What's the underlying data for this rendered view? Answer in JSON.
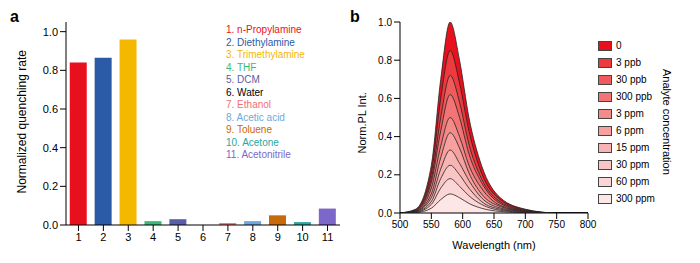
{
  "chart_data": [
    {
      "type": "bar",
      "title": "a",
      "y_label": "Normalized quenching rate",
      "categories": [
        "1",
        "2",
        "3",
        "4",
        "5",
        "6",
        "7",
        "8",
        "9",
        "10",
        "11"
      ],
      "values": [
        0.84,
        0.865,
        0.96,
        0.02,
        0.03,
        0.0,
        0.01,
        0.02,
        0.05,
        0.015,
        0.085
      ],
      "colors": [
        "#e8101c",
        "#2b5ba6",
        "#f5b800",
        "#3cb878",
        "#5a5ea8",
        "#000000",
        "#f07070",
        "#6fa8dc",
        "#c8690a",
        "#2aa5a0",
        "#7b68c8"
      ],
      "annotations": [
        "1. n-Propylamine",
        "2. Diethylamine",
        "3. Trimethylamine",
        "4. THF",
        "5. DCM",
        "6. Water",
        "7. Ethanol",
        "8. Acetic acid",
        "9. Toluene",
        "10. Acetone",
        "11. Acetonitrile"
      ],
      "ylim": [
        0,
        1.05
      ],
      "yticks": [
        {
          "value": 0,
          "label": "0.0"
        },
        {
          "value": 0.2,
          "label": "0.2"
        },
        {
          "value": 0.4,
          "label": "0.4"
        },
        {
          "value": 0.6,
          "label": "0.6"
        },
        {
          "value": 0.8,
          "label": "0.8"
        },
        {
          "value": 1,
          "label": "1.0"
        }
      ]
    },
    {
      "type": "area",
      "title": "b",
      "x_label": "Wavelength (nm)",
      "y_label": "Norm.PL Int.",
      "legend_title": "Analyte concentration",
      "x": [
        500,
        525,
        550,
        565,
        580,
        595,
        610,
        630,
        660,
        700,
        750,
        800
      ],
      "series": [
        {
          "name": "0",
          "color": "#e8101c",
          "values": [
            0,
            0.02,
            0.25,
            0.7,
            1.0,
            0.8,
            0.5,
            0.25,
            0.08,
            0.02,
            0,
            0
          ]
        },
        {
          "name": "3 ppb",
          "color": "#ec3a3f",
          "values": [
            0,
            0.017,
            0.21,
            0.6,
            0.85,
            0.68,
            0.43,
            0.21,
            0.07,
            0.017,
            0,
            0
          ]
        },
        {
          "name": "30 ppb",
          "color": "#ef5a5c",
          "values": [
            0,
            0.014,
            0.18,
            0.5,
            0.72,
            0.58,
            0.36,
            0.18,
            0.058,
            0.014,
            0,
            0
          ]
        },
        {
          "name": "300 ppb",
          "color": "#f27475",
          "values": [
            0,
            0.012,
            0.16,
            0.43,
            0.62,
            0.5,
            0.31,
            0.16,
            0.05,
            0.012,
            0,
            0
          ]
        },
        {
          "name": "3 ppm",
          "color": "#f48b8b",
          "values": [
            0,
            0.01,
            0.13,
            0.35,
            0.5,
            0.4,
            0.25,
            0.13,
            0.04,
            0.01,
            0,
            0
          ]
        },
        {
          "name": "6 ppm",
          "color": "#f6a0a0",
          "values": [
            0,
            0.008,
            0.1,
            0.29,
            0.42,
            0.34,
            0.21,
            0.1,
            0.034,
            0.008,
            0,
            0
          ]
        },
        {
          "name": "15 ppm",
          "color": "#f8b3b3",
          "values": [
            0,
            0.007,
            0.08,
            0.23,
            0.33,
            0.26,
            0.17,
            0.08,
            0.026,
            0.007,
            0,
            0
          ]
        },
        {
          "name": "30 ppm",
          "color": "#fac5c5",
          "values": [
            0,
            0.005,
            0.06,
            0.18,
            0.25,
            0.2,
            0.13,
            0.06,
            0.02,
            0.005,
            0,
            0
          ]
        },
        {
          "name": "60 ppm",
          "color": "#fcd6d6",
          "values": [
            0,
            0.004,
            0.045,
            0.13,
            0.18,
            0.14,
            0.09,
            0.045,
            0.014,
            0.004,
            0,
            0
          ]
        },
        {
          "name": "300 ppm",
          "color": "#fde6e6",
          "values": [
            0,
            0.002,
            0.025,
            0.07,
            0.1,
            0.08,
            0.05,
            0.025,
            0.008,
            0.002,
            0,
            0
          ]
        }
      ],
      "xlim": [
        500,
        800
      ],
      "xticks": [
        500,
        550,
        600,
        650,
        700,
        750,
        800
      ],
      "ylim": [
        0,
        1
      ],
      "yticks": [
        {
          "value": 0,
          "label": "0.0"
        },
        {
          "value": 0.2,
          "label": "0.2"
        },
        {
          "value": 0.4,
          "label": "0.4"
        },
        {
          "value": 0.6,
          "label": "0.6"
        },
        {
          "value": 0.8,
          "label": "0.8"
        },
        {
          "value": 1,
          "label": "1.0"
        }
      ]
    }
  ]
}
